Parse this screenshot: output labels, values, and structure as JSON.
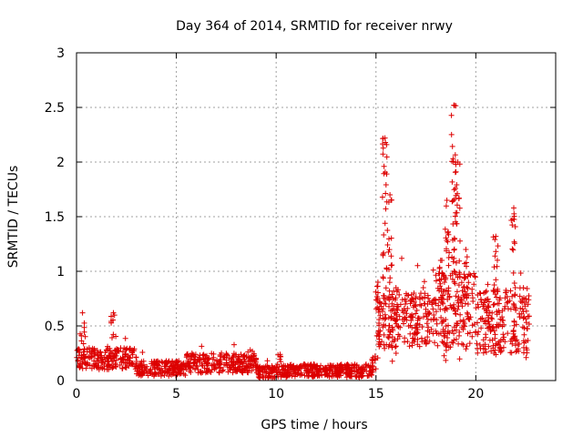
{
  "chart_data": {
    "type": "scatter",
    "title": "Day 364 of 2014, SRMTID for receiver nrwy",
    "xlabel": "GPS time / hours",
    "ylabel": "SRMTID / TECUs",
    "xlim": [
      0,
      24
    ],
    "ylim": [
      0,
      3
    ],
    "x_ticks": [
      0,
      5,
      10,
      15,
      20
    ],
    "y_ticks": [
      0,
      0.5,
      1,
      1.5,
      2,
      2.5,
      3
    ],
    "x_tick_labels": [
      "0",
      "5",
      "10",
      "15",
      "20"
    ],
    "y_tick_labels": [
      "0",
      "0.5",
      "1",
      "1.5",
      "2",
      "2.5",
      "3"
    ],
    "grid": true,
    "marker": "+",
    "marker_color": "#dd0000",
    "series": [
      {
        "name": "SRMTID",
        "segments": [
          {
            "x_start": 0.0,
            "x_end": 3.0,
            "base": 0.2,
            "spread": 0.1
          },
          {
            "x_start": 3.0,
            "x_end": 5.5,
            "base": 0.11,
            "spread": 0.07
          },
          {
            "x_start": 5.5,
            "x_end": 9.0,
            "base": 0.16,
            "spread": 0.09
          },
          {
            "x_start": 9.0,
            "x_end": 10.0,
            "base": 0.08,
            "spread": 0.06
          },
          {
            "x_start": 10.0,
            "x_end": 14.8,
            "base": 0.09,
            "spread": 0.06
          },
          {
            "x_start": 14.8,
            "x_end": 15.0,
            "base": 0.15,
            "spread": 0.08
          },
          {
            "x_start": 15.0,
            "x_end": 18.0,
            "base": 0.55,
            "spread": 0.25
          },
          {
            "x_start": 18.0,
            "x_end": 20.0,
            "base": 0.65,
            "spread": 0.35
          },
          {
            "x_start": 20.0,
            "x_end": 22.7,
            "base": 0.55,
            "spread": 0.3
          }
        ],
        "peaks": [
          {
            "x": 0.3,
            "y": 0.62
          },
          {
            "x": 1.85,
            "y": 0.62
          },
          {
            "x": 8.7,
            "y": 0.28
          },
          {
            "x": 10.2,
            "y": 0.24
          },
          {
            "x": 15.1,
            "y": 0.9
          },
          {
            "x": 15.45,
            "y": 2.22
          },
          {
            "x": 15.7,
            "y": 1.7
          },
          {
            "x": 16.0,
            "y": 0.85
          },
          {
            "x": 16.9,
            "y": 0.8
          },
          {
            "x": 18.3,
            "y": 1.1
          },
          {
            "x": 18.55,
            "y": 1.65
          },
          {
            "x": 18.9,
            "y": 2.52
          },
          {
            "x": 19.1,
            "y": 2.0
          },
          {
            "x": 19.5,
            "y": 1.2
          },
          {
            "x": 20.5,
            "y": 0.55
          },
          {
            "x": 21.0,
            "y": 1.32
          },
          {
            "x": 21.9,
            "y": 1.58
          },
          {
            "x": 22.5,
            "y": 0.75
          }
        ]
      }
    ]
  }
}
